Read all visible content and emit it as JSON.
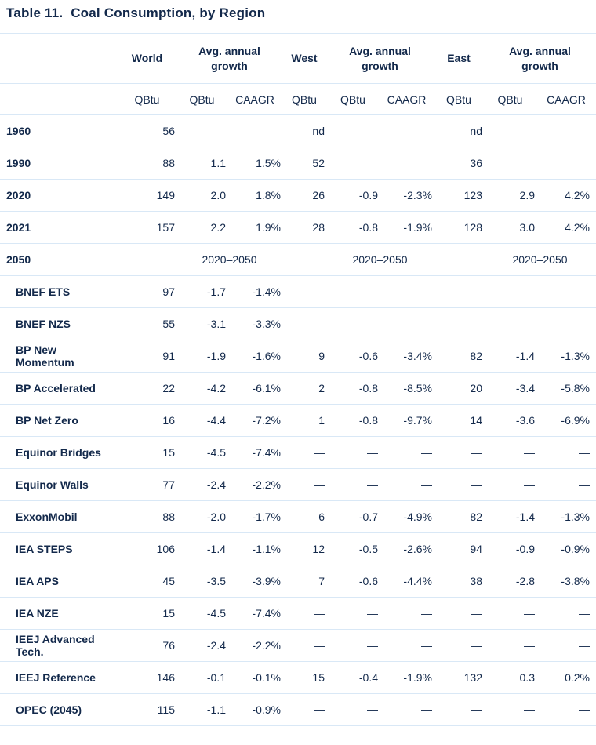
{
  "title": "Table 11.  Coal Consumption, by Region",
  "colors": {
    "text_navy": "#13294B",
    "divider_light_blue": "#D9E8F6",
    "background": "#FFFFFF"
  },
  "table": {
    "region_groups": [
      {
        "region": "World",
        "growth_label": "Avg. annual growth"
      },
      {
        "region": "West",
        "growth_label": "Avg. annual growth"
      },
      {
        "region": "East",
        "growth_label": "Avg. annual growth"
      }
    ],
    "sub_headers": [
      "QBtu",
      "QBtu",
      "CAAGR",
      "QBtu",
      "QBtu",
      "CAAGR",
      "QBtu",
      "QBtu",
      "CAAGR"
    ],
    "rows": [
      {
        "label": "1960",
        "indent": false,
        "type": "data",
        "cells": [
          "56",
          "",
          "",
          "nd",
          "",
          "",
          "nd",
          "",
          ""
        ]
      },
      {
        "label": "1990",
        "indent": false,
        "type": "data",
        "cells": [
          "88",
          "1.1",
          "1.5%",
          "52",
          "",
          "",
          "36",
          "",
          ""
        ]
      },
      {
        "label": "2020",
        "indent": false,
        "type": "data",
        "cells": [
          "149",
          "2.0",
          "1.8%",
          "26",
          "-0.9",
          "-2.3%",
          "123",
          "2.9",
          "4.2%"
        ]
      },
      {
        "label": "2021",
        "indent": false,
        "type": "data",
        "cells": [
          "157",
          "2.2",
          "1.9%",
          "28",
          "-0.8",
          "-1.9%",
          "128",
          "3.0",
          "4.2%"
        ]
      },
      {
        "label": "2050",
        "indent": false,
        "type": "span",
        "spans": [
          "2020–2050",
          "2020–2050",
          "2020–2050"
        ]
      },
      {
        "label": "BNEF ETS",
        "indent": true,
        "type": "data",
        "cells": [
          "97",
          "-1.7",
          "-1.4%",
          "—",
          "—",
          "—",
          "—",
          "—",
          "—"
        ]
      },
      {
        "label": "BNEF NZS",
        "indent": true,
        "type": "data",
        "cells": [
          "55",
          "-3.1",
          "-3.3%",
          "—",
          "—",
          "—",
          "—",
          "—",
          "—"
        ]
      },
      {
        "label": "BP New Momentum",
        "indent": true,
        "type": "data",
        "cells": [
          "91",
          "-1.9",
          "-1.6%",
          "9",
          "-0.6",
          "-3.4%",
          "82",
          "-1.4",
          "-1.3%"
        ]
      },
      {
        "label": "BP Accelerated",
        "indent": true,
        "type": "data",
        "cells": [
          "22",
          "-4.2",
          "-6.1%",
          "2",
          "-0.8",
          "-8.5%",
          "20",
          "-3.4",
          "-5.8%"
        ]
      },
      {
        "label": "BP Net Zero",
        "indent": true,
        "type": "data",
        "cells": [
          "16",
          "-4.4",
          "-7.2%",
          "1",
          "-0.8",
          "-9.7%",
          "14",
          "-3.6",
          "-6.9%"
        ]
      },
      {
        "label": "Equinor Bridges",
        "indent": true,
        "type": "data",
        "cells": [
          "15",
          "-4.5",
          "-7.4%",
          "—",
          "—",
          "—",
          "—",
          "—",
          "—"
        ]
      },
      {
        "label": "Equinor Walls",
        "indent": true,
        "type": "data",
        "cells": [
          "77",
          "-2.4",
          "-2.2%",
          "—",
          "—",
          "—",
          "—",
          "—",
          "—"
        ]
      },
      {
        "label": "ExxonMobil",
        "indent": true,
        "type": "data",
        "cells": [
          "88",
          "-2.0",
          "-1.7%",
          "6",
          "-0.7",
          "-4.9%",
          "82",
          "-1.4",
          "-1.3%"
        ]
      },
      {
        "label": "IEA STEPS",
        "indent": true,
        "type": "data",
        "cells": [
          "106",
          "-1.4",
          "-1.1%",
          "12",
          "-0.5",
          "-2.6%",
          "94",
          "-0.9",
          "-0.9%"
        ]
      },
      {
        "label": "IEA APS",
        "indent": true,
        "type": "data",
        "cells": [
          "45",
          "-3.5",
          "-3.9%",
          "7",
          "-0.6",
          "-4.4%",
          "38",
          "-2.8",
          "-3.8%"
        ]
      },
      {
        "label": "IEA NZE",
        "indent": true,
        "type": "data",
        "cells": [
          "15",
          "-4.5",
          "-7.4%",
          "—",
          "—",
          "—",
          "—",
          "—",
          "—"
        ]
      },
      {
        "label": "IEEJ Advanced Tech.",
        "indent": true,
        "type": "data",
        "cells": [
          "76",
          "-2.4",
          "-2.2%",
          "—",
          "—",
          "—",
          "—",
          "—",
          "—"
        ]
      },
      {
        "label": "IEEJ Reference",
        "indent": true,
        "type": "data",
        "cells": [
          "146",
          "-0.1",
          "-0.1%",
          "15",
          "-0.4",
          "-1.9%",
          "132",
          "0.3",
          "0.2%"
        ]
      },
      {
        "label": "OPEC (2045)",
        "indent": true,
        "type": "data",
        "cells": [
          "115",
          "-1.1",
          "-0.9%",
          "—",
          "—",
          "—",
          "—",
          "—",
          "—"
        ]
      }
    ]
  }
}
